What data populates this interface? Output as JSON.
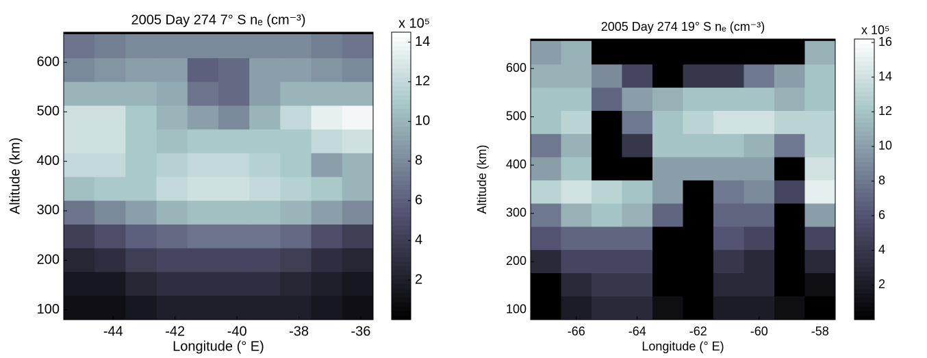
{
  "chart_data": [
    {
      "type": "heatmap",
      "colormap": "bone",
      "title": "2005 Day 274 7° S nₑ (cm⁻³)",
      "x_label": "Longitude (° E)",
      "y_label": "Altitude (km)",
      "colorbar_label": "x 10⁵",
      "xlim": [
        -45.6,
        -35.6
      ],
      "ylim": [
        80,
        661
      ],
      "xticks": [
        -44,
        -42,
        -40,
        -38,
        -36
      ],
      "yticks": [
        100,
        200,
        300,
        400,
        500,
        600
      ],
      "zlim": [
        0,
        14.5
      ],
      "zticks": [
        2,
        4,
        6,
        8,
        10,
        12,
        14
      ],
      "x": [
        -45.1,
        -44.1,
        -43.1,
        -42.1,
        -41.1,
        -40.1,
        -39.1,
        -38.1,
        -37.1,
        -36.1
      ],
      "y": [
        105,
        153,
        201,
        249,
        297,
        345,
        393,
        441,
        489,
        537,
        585,
        633
      ],
      "z": [
        [
          1,
          1,
          1.5,
          2,
          2,
          2,
          2,
          2,
          1.5,
          1
        ],
        [
          1.5,
          1.5,
          2.5,
          3,
          3,
          3,
          3,
          2.5,
          2,
          1.5
        ],
        [
          2.5,
          3,
          4,
          4.5,
          4.5,
          4.5,
          4.5,
          4,
          3,
          2.5
        ],
        [
          4,
          5,
          6,
          6.5,
          7,
          7,
          7,
          6.5,
          5,
          4
        ],
        [
          7,
          8,
          9,
          10,
          10.5,
          10.5,
          10.5,
          10,
          9,
          8
        ],
        [
          10.5,
          11,
          11,
          12,
          12.5,
          12.5,
          12,
          11.5,
          11,
          10
        ],
        [
          12,
          12,
          11,
          11.5,
          12,
          12,
          11.5,
          11,
          9,
          10
        ],
        [
          12.5,
          12.5,
          11,
          10.5,
          11,
          11,
          11,
          11,
          12,
          12.5
        ],
        [
          12.5,
          12.5,
          11,
          10,
          9,
          8,
          10,
          12,
          13.5,
          14
        ],
        [
          10,
          10,
          10,
          9.5,
          7,
          6.5,
          9,
          10,
          10,
          10
        ],
        [
          8,
          8.5,
          9,
          9,
          6,
          6.5,
          9,
          9,
          8.5,
          8
        ],
        [
          7,
          7.5,
          8,
          8,
          8,
          8,
          8,
          8,
          7.5,
          7
        ]
      ]
    },
    {
      "type": "heatmap",
      "colormap": "bone",
      "title": "2005 Day 274 19° S nₑ (cm⁻³)",
      "x_label": "Longitude (° E)",
      "y_label": "Altitude (km)",
      "colorbar_label": "x 10⁵",
      "xlim": [
        -67.5,
        -57.5
      ],
      "ylim": [
        80,
        661
      ],
      "xticks": [
        -66,
        -64,
        -62,
        -60,
        -58
      ],
      "yticks": [
        100,
        200,
        300,
        400,
        500,
        600
      ],
      "zlim": [
        0,
        16.2
      ],
      "zticks": [
        2,
        4,
        6,
        8,
        10,
        12,
        14,
        16
      ],
      "x": [
        -67,
        -66,
        -65,
        -64,
        -63,
        -62,
        -61,
        -60,
        -59,
        -58
      ],
      "y": [
        105,
        153,
        201,
        249,
        297,
        345,
        393,
        441,
        489,
        537,
        585,
        633
      ],
      "z": [
        [
          0,
          2,
          3,
          3,
          1,
          0,
          2,
          2,
          1,
          0
        ],
        [
          0,
          3,
          4,
          4,
          0,
          0,
          3,
          3,
          0,
          1
        ],
        [
          3,
          5,
          5,
          5,
          0,
          0,
          4,
          3,
          0,
          3
        ],
        [
          6,
          7,
          7,
          7,
          0,
          0,
          6,
          5,
          0,
          5
        ],
        [
          8,
          11,
          12,
          11,
          7,
          0,
          7,
          7,
          0,
          10
        ],
        [
          13,
          14,
          13,
          12,
          10,
          0,
          8,
          9,
          5,
          15
        ],
        [
          10,
          12,
          0,
          0,
          10,
          10,
          10,
          10,
          0,
          14
        ],
        [
          8,
          11,
          0,
          4,
          12,
          12,
          12,
          11,
          8,
          13
        ],
        [
          12,
          13,
          0,
          8,
          12,
          13,
          14,
          14,
          13,
          13
        ],
        [
          12,
          12,
          7,
          10,
          11,
          12,
          12,
          12,
          11,
          12
        ],
        [
          11,
          11,
          9,
          5,
          0,
          4,
          4,
          8,
          10,
          12
        ],
        [
          10,
          11,
          0,
          0,
          0,
          0,
          0,
          0,
          0,
          11
        ]
      ]
    }
  ]
}
